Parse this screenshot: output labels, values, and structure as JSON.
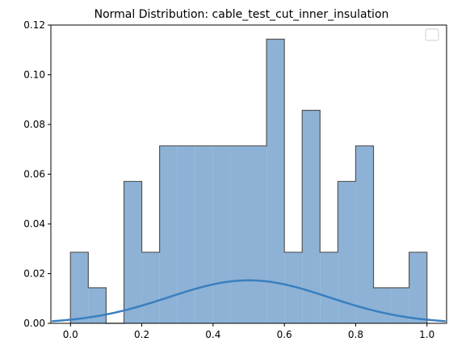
{
  "chart_data": {
    "type": "histogram",
    "title": "Normal Distribution: cable_test_cut_inner_insulation",
    "xlabel": "",
    "ylabel": "",
    "xlim": [
      -0.055,
      1.055
    ],
    "ylim": [
      0,
      0.12
    ],
    "x_ticks": [
      "0.0",
      "0.2",
      "0.4",
      "0.6",
      "0.8",
      "1.0"
    ],
    "x_tick_values": [
      0.0,
      0.2,
      0.4,
      0.6,
      0.8,
      1.0
    ],
    "y_ticks": [
      "0.00",
      "0.02",
      "0.04",
      "0.06",
      "0.08",
      "0.10",
      "0.12"
    ],
    "y_tick_values": [
      0.0,
      0.02,
      0.04,
      0.06,
      0.08,
      0.1,
      0.12
    ],
    "bin_edges": [
      0.0,
      0.05,
      0.1,
      0.15,
      0.2,
      0.25,
      0.3,
      0.35,
      0.4,
      0.45,
      0.5,
      0.55,
      0.6,
      0.65,
      0.7,
      0.75,
      0.8,
      0.85,
      0.9,
      0.95,
      1.0
    ],
    "bin_values": [
      0.0286,
      0.0143,
      0.0,
      0.0571,
      0.0286,
      0.0714,
      0.0714,
      0.0714,
      0.0714,
      0.0714,
      0.0714,
      0.1143,
      0.0286,
      0.0857,
      0.0286,
      0.0571,
      0.0714,
      0.0143,
      0.0143,
      0.0286
    ],
    "curve": {
      "type": "normal_pdf",
      "mean": 0.5,
      "peak": 0.0173,
      "std": 0.225,
      "x_range": [
        -0.05,
        1.05
      ]
    },
    "grid": false,
    "legend": "top-right (empty)",
    "colors": {
      "hist_fill": "#8db2d6",
      "hist_edge": "#555555",
      "curve": "#3a7fbf"
    }
  }
}
